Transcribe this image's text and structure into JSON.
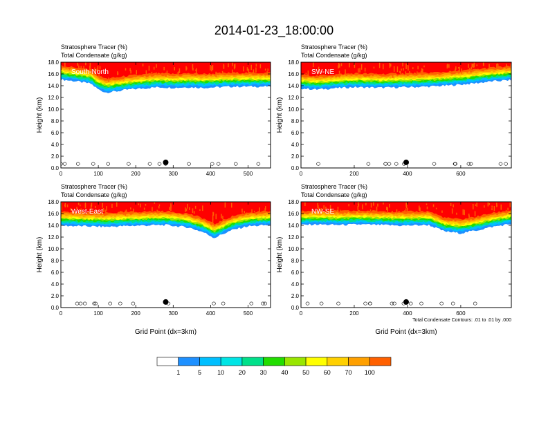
{
  "figure": {
    "title": "2014-01-23_18:00:00",
    "contour_note": "Total Condensate Contours: .01 to .01 by .000"
  },
  "colors": {
    "bins": [
      "#ffffff",
      "#1e90ff",
      "#00bfff",
      "#00e5e5",
      "#00e08a",
      "#22dd00",
      "#99e600",
      "#ffff00",
      "#ffd000",
      "#ffa000",
      "#ff6000",
      "#ff0000"
    ],
    "background": "#ffffff",
    "frame": "#000000",
    "contour": "#000000"
  },
  "colorbar": {
    "labels": [
      "1",
      "5",
      "10",
      "20",
      "30",
      "40",
      "50",
      "60",
      "70",
      "100"
    ]
  },
  "chart_data": [
    {
      "type": "heatmap",
      "panel_label": "South-North",
      "subtitle_line1": "Stratosphere Tracer   (%)",
      "subtitle_line2": "Total Condensate   (g/kg)",
      "ylabel": "Height (km)",
      "xlabel": "",
      "xlim": [
        0,
        560
      ],
      "ylim": [
        0,
        18
      ],
      "xticks": [
        0,
        100,
        200,
        300,
        400,
        500
      ],
      "xtick_labels": [
        "0",
        "100",
        "200",
        "300",
        "400",
        "500"
      ],
      "yticks": [
        0,
        2,
        4,
        6,
        8,
        10,
        12,
        14,
        16,
        18
      ],
      "ytick_labels": [
        "0.0",
        "2.0",
        "4.0",
        "6.0",
        "8.0",
        "10.0",
        "12.0",
        "14.0",
        "16.0",
        "18.0"
      ],
      "marker_x": 280,
      "tropopause_km": [
        [
          0,
          15.6
        ],
        [
          40,
          15.3
        ],
        [
          80,
          14.9
        ],
        [
          100,
          13.9
        ],
        [
          120,
          13.4
        ],
        [
          150,
          13.6
        ],
        [
          180,
          13.9
        ],
        [
          220,
          14.1
        ],
        [
          260,
          14.3
        ],
        [
          300,
          14.2
        ],
        [
          340,
          14.3
        ],
        [
          380,
          14.2
        ],
        [
          420,
          14.3
        ],
        [
          460,
          14.4
        ],
        [
          500,
          14.4
        ],
        [
          560,
          14.4
        ]
      ]
    },
    {
      "type": "heatmap",
      "panel_label": "SW-NE",
      "subtitle_line1": "Stratosphere Tracer   (%)",
      "subtitle_line2": "Total Condensate   (g/kg)",
      "ylabel": "Height (km)",
      "xlabel": "",
      "xlim": [
        0,
        790
      ],
      "ylim": [
        0,
        18
      ],
      "xticks": [
        0,
        200,
        400,
        600
      ],
      "xtick_labels": [
        "0",
        "200",
        "400",
        "600"
      ],
      "yticks": [
        0,
        2,
        4,
        6,
        8,
        10,
        12,
        14,
        16,
        18
      ],
      "ytick_labels": [
        "0.0",
        "2.0",
        "4.0",
        "6.0",
        "8.0",
        "10.0",
        "12.0",
        "14.0",
        "16.0",
        "18.0"
      ],
      "marker_x": 395,
      "tropopause_km": [
        [
          0,
          14.1
        ],
        [
          60,
          13.9
        ],
        [
          120,
          14.1
        ],
        [
          200,
          14.3
        ],
        [
          300,
          14.2
        ],
        [
          400,
          14.3
        ],
        [
          480,
          14.4
        ],
        [
          560,
          14.6
        ],
        [
          640,
          14.9
        ],
        [
          720,
          15.3
        ],
        [
          790,
          15.5
        ]
      ]
    },
    {
      "type": "heatmap",
      "panel_label": "West-East",
      "subtitle_line1": "Stratosphere Tracer   (%)",
      "subtitle_line2": "Total Condensate   (g/kg)",
      "ylabel": "Height (km)",
      "xlabel": "Grid Point (dx=3km)",
      "xlim": [
        0,
        560
      ],
      "ylim": [
        0,
        18
      ],
      "xticks": [
        0,
        100,
        200,
        300,
        400,
        500
      ],
      "xtick_labels": [
        "0",
        "100",
        "200",
        "300",
        "400",
        "500"
      ],
      "yticks": [
        0,
        2,
        4,
        6,
        8,
        10,
        12,
        14,
        16,
        18
      ],
      "ytick_labels": [
        "0.0",
        "2.0",
        "4.0",
        "6.0",
        "8.0",
        "10.0",
        "12.0",
        "14.0",
        "16.0",
        "18.0"
      ],
      "marker_x": 280,
      "tropopause_km": [
        [
          0,
          14.5
        ],
        [
          60,
          14.4
        ],
        [
          120,
          14.3
        ],
        [
          200,
          14.5
        ],
        [
          280,
          14.6
        ],
        [
          340,
          14.2
        ],
        [
          380,
          13.4
        ],
        [
          410,
          12.4
        ],
        [
          430,
          13.0
        ],
        [
          460,
          13.8
        ],
        [
          500,
          14.4
        ],
        [
          560,
          14.6
        ]
      ]
    },
    {
      "type": "heatmap",
      "panel_label": "NW-SE",
      "subtitle_line1": "Stratosphere Tracer   (%)",
      "subtitle_line2": "Total Condensate   (g/kg)",
      "ylabel": "Height (km)",
      "xlabel": "Grid Point (dx=3km)",
      "xlim": [
        0,
        790
      ],
      "ylim": [
        0,
        18
      ],
      "xticks": [
        0,
        200,
        400,
        600
      ],
      "xtick_labels": [
        "0",
        "200",
        "400",
        "600"
      ],
      "yticks": [
        0,
        2,
        4,
        6,
        8,
        10,
        12,
        14,
        16,
        18
      ],
      "ytick_labels": [
        "0.0",
        "2.0",
        "4.0",
        "6.0",
        "8.0",
        "10.0",
        "12.0",
        "14.0",
        "16.0",
        "18.0"
      ],
      "marker_x": 395,
      "tropopause_km": [
        [
          0,
          14.6
        ],
        [
          60,
          14.7
        ],
        [
          140,
          14.6
        ],
        [
          220,
          14.7
        ],
        [
          300,
          14.6
        ],
        [
          380,
          14.5
        ],
        [
          480,
          14.6
        ],
        [
          540,
          13.5
        ],
        [
          600,
          13.2
        ],
        [
          660,
          13.7
        ],
        [
          720,
          14.3
        ],
        [
          790,
          14.8
        ]
      ]
    }
  ]
}
